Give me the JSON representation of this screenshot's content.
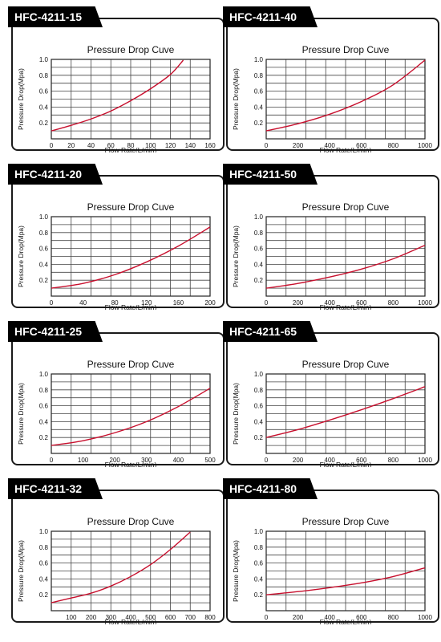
{
  "chart_data": [
    {
      "type": "line",
      "model": "HFC-4211-15",
      "title": "Pressure Drop Cuve",
      "xlabel": "Flow Rate(L/min)",
      "ylabel": "Pressure Drop(Mpa)",
      "xticks": [
        "0",
        "20",
        "40",
        "60",
        "80",
        "100",
        "120",
        "140",
        "160"
      ],
      "yticks": [
        "0.2",
        "0.4",
        "0.6",
        "0.8",
        "1.0"
      ],
      "xlim": [
        0,
        160
      ],
      "ylim": [
        0,
        1.0
      ],
      "grid": true,
      "line_color": "#c8102e",
      "series": [
        {
          "x": [
            0,
            20,
            40,
            60,
            80,
            100,
            120,
            133
          ],
          "y": [
            0.1,
            0.17,
            0.25,
            0.35,
            0.48,
            0.63,
            0.81,
            0.99
          ]
        }
      ]
    },
    {
      "type": "line",
      "model": "HFC-4211-40",
      "title": "Pressure Drop Cuve",
      "xlabel": "Flow Rate(L/min)",
      "ylabel": "Pressure Drop(Mpa)",
      "xticks": [
        "0",
        "200",
        "400",
        "600",
        "800",
        "1000"
      ],
      "yticks": [
        "0.2",
        "0.4",
        "0.6",
        "0.8",
        "1.0"
      ],
      "xlim": [
        0,
        1000
      ],
      "ylim": [
        0,
        1.0
      ],
      "grid": true,
      "line_color": "#c8102e",
      "series": [
        {
          "x": [
            0,
            200,
            400,
            600,
            800,
            1000
          ],
          "y": [
            0.1,
            0.19,
            0.31,
            0.47,
            0.68,
            0.99
          ]
        }
      ]
    },
    {
      "type": "line",
      "model": "HFC-4211-20",
      "title": "Pressure Drop Cuve",
      "xlabel": "Flow Rate(L/min)",
      "ylabel": "Pressure Drop(Mpa)",
      "xticks": [
        "0",
        "40",
        "80",
        "120",
        "160",
        "200"
      ],
      "yticks": [
        "0.2",
        "0.4",
        "0.6",
        "0.8",
        "1.0"
      ],
      "xlim": [
        0,
        200
      ],
      "ylim": [
        0,
        1.0
      ],
      "grid": true,
      "line_color": "#c8102e",
      "series": [
        {
          "x": [
            0,
            40,
            80,
            120,
            160,
            200
          ],
          "y": [
            0.1,
            0.16,
            0.27,
            0.43,
            0.63,
            0.87
          ]
        }
      ]
    },
    {
      "type": "line",
      "model": "HFC-4211-50",
      "title": "Pressure Drop Cuve",
      "xlabel": "Flow Rate(L/min)",
      "ylabel": "Pressure Drop(Mpa)",
      "xticks": [
        "0",
        "200",
        "400",
        "600",
        "800",
        "1000"
      ],
      "yticks": [
        "0.2",
        "0.4",
        "0.6",
        "0.8",
        "1.0"
      ],
      "xlim": [
        0,
        1000
      ],
      "ylim": [
        0,
        1.0
      ],
      "grid": true,
      "line_color": "#c8102e",
      "series": [
        {
          "x": [
            0,
            200,
            400,
            600,
            800,
            1000
          ],
          "y": [
            0.1,
            0.16,
            0.24,
            0.34,
            0.47,
            0.64
          ]
        }
      ]
    },
    {
      "type": "line",
      "model": "HFC-4211-25",
      "title": "Pressure Drop Cuve",
      "xlabel": "Flow Rate(L/min)",
      "ylabel": "Pressure Drop(Mpa)",
      "xticks": [
        "0",
        "100",
        "200",
        "300",
        "400",
        "500"
      ],
      "yticks": [
        "0.2",
        "0.4",
        "0.6",
        "0.8",
        "1.0"
      ],
      "xlim": [
        0,
        500
      ],
      "ylim": [
        0,
        1.0
      ],
      "grid": true,
      "line_color": "#c8102e",
      "series": [
        {
          "x": [
            0,
            100,
            200,
            300,
            400,
            500
          ],
          "y": [
            0.1,
            0.16,
            0.26,
            0.4,
            0.59,
            0.82
          ]
        }
      ]
    },
    {
      "type": "line",
      "model": "HFC-4211-65",
      "title": "Pressure Drop Cuve",
      "xlabel": "Flow Rate(L/min)",
      "ylabel": "Pressure Drop(Mpa)",
      "xticks": [
        "0",
        "200",
        "400",
        "600",
        "800",
        "1000"
      ],
      "yticks": [
        "0.2",
        "0.4",
        "0.6",
        "0.8",
        "1.0"
      ],
      "xlim": [
        0,
        1000
      ],
      "ylim": [
        0,
        1.0
      ],
      "grid": true,
      "line_color": "#c8102e",
      "series": [
        {
          "x": [
            0,
            200,
            400,
            600,
            800,
            1000
          ],
          "y": [
            0.2,
            0.3,
            0.42,
            0.55,
            0.69,
            0.84
          ]
        }
      ]
    },
    {
      "type": "line",
      "model": "HFC-4211-32",
      "title": "Pressure Drop Cuve",
      "xlabel": "Flow Rate(L/min)",
      "ylabel": "Pressure Drop(Mpa)",
      "xticks": [
        "100",
        "200",
        "300",
        "400",
        "500",
        "600",
        "700",
        "800"
      ],
      "yticks": [
        "0.2",
        "0.4",
        "0.6",
        "0.8",
        "1.0"
      ],
      "xlim": [
        0,
        800
      ],
      "ylim": [
        0,
        1.0
      ],
      "grid": true,
      "line_color": "#c8102e",
      "series": [
        {
          "x": [
            0,
            100,
            200,
            300,
            400,
            500,
            600,
            700
          ],
          "y": [
            0.1,
            0.16,
            0.22,
            0.31,
            0.43,
            0.58,
            0.77,
            0.99
          ]
        }
      ]
    },
    {
      "type": "line",
      "model": "HFC-4211-80",
      "title": "Pressure Drop Cuve",
      "xlabel": "Flow Rate(L/min)",
      "ylabel": "Pressure Drop(Mpa)",
      "xticks": [
        "0",
        "200",
        "400",
        "600",
        "800",
        "1000"
      ],
      "yticks": [
        "0.2",
        "0.4",
        "0.6",
        "0.8",
        "1.0"
      ],
      "xlim": [
        0,
        1000
      ],
      "ylim": [
        0,
        1.0
      ],
      "grid": true,
      "line_color": "#c8102e",
      "series": [
        {
          "x": [
            0,
            200,
            400,
            600,
            800,
            1000
          ],
          "y": [
            0.2,
            0.24,
            0.29,
            0.35,
            0.43,
            0.54
          ]
        }
      ]
    }
  ]
}
